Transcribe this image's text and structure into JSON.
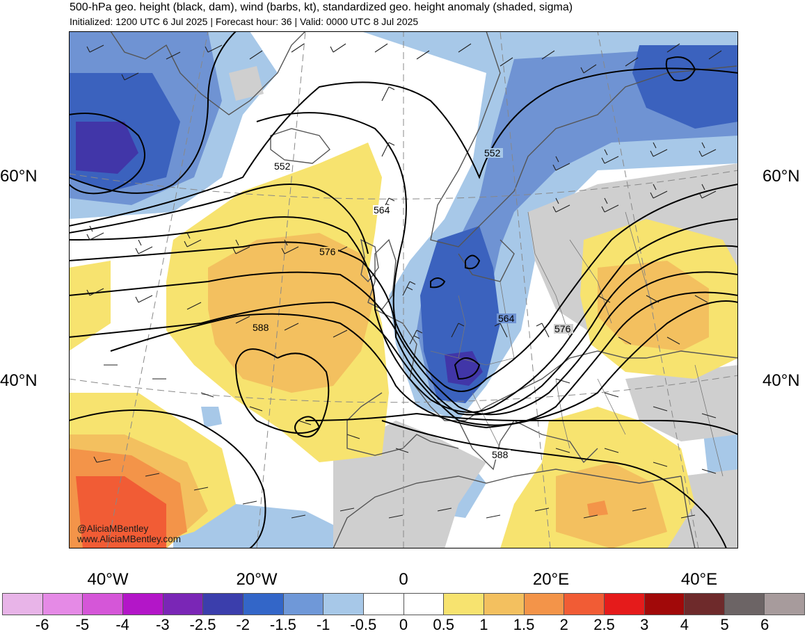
{
  "header": {
    "title": "500-hPa geo. height (black, dam), wind (barbs, kt), standardized geo. height anomaly (shaded, sigma)",
    "subtitle": "Initialized: 1200 UTC 6 Jul 2025 | Forecast hour: 36 | Valid: 0000 UTC 8 Jul 2025"
  },
  "map": {
    "lat_labels": [
      "60°N",
      "40°N"
    ],
    "lon_labels": [
      "40°W",
      "20°W",
      "0",
      "20°E",
      "40°E"
    ],
    "contour_labels": [
      "552",
      "552",
      "564",
      "564",
      "576",
      "576",
      "588",
      "588"
    ],
    "credit_handle": "@AliciaMBentley",
    "credit_url": "www.AliciaMBentley.com"
  },
  "colorbar": {
    "labels": [
      "-6",
      "-5",
      "-4",
      "-3",
      "-2.5",
      "-2",
      "-1.5",
      "-1",
      "-0.5",
      "0",
      "0.5",
      "1",
      "1.5",
      "2",
      "2.5",
      "3",
      "4",
      "5",
      "6"
    ],
    "colors": [
      "#e8b4e8",
      "#e58ae6",
      "#d556d8",
      "#b316c8",
      "#7a26b6",
      "#3b3eac",
      "#3366c8",
      "#6f98d8",
      "#a7c8e8",
      "#ffffff",
      "#ffffff",
      "#f7e36f",
      "#f3c05f",
      "#f39449",
      "#f15c35",
      "#e51b1b",
      "#a10909",
      "#6e2a2b",
      "#6c6465",
      "#a79b9c"
    ],
    "anomaly_colors": {
      "neg_2_5": "#4136a8",
      "neg_2": "#3b62be",
      "neg_1_5": "#6f93d3",
      "neg_1": "#a7c8e8",
      "pos_0_5": "#f7e36f",
      "pos_1": "#f3c05f",
      "pos_1_5": "#f39449",
      "pos_2": "#f15c35",
      "grey": "#cfcfcf"
    }
  }
}
